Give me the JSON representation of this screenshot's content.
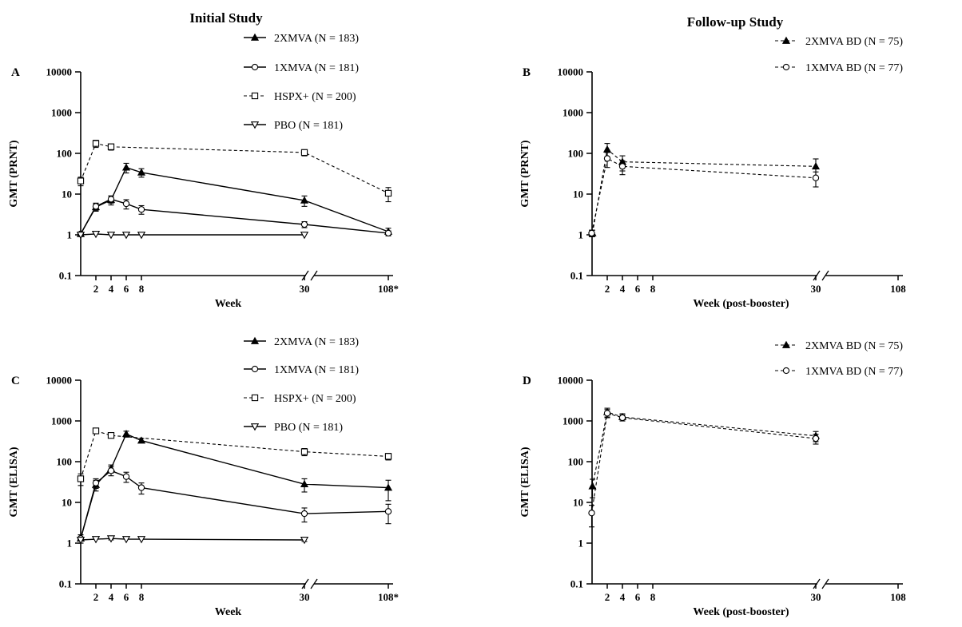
{
  "titles": {
    "left": "Initial Study",
    "right": "Follow-up Study"
  },
  "legend_initial": [
    "2XMVA (N = 183)",
    "1XMVA (N = 181)",
    "HSPX+ (N = 200)",
    "PBO (N = 181)"
  ],
  "legend_followup": [
    "2XMVA BD (N = 75)",
    "1XMVA BD (N = 77)"
  ],
  "chart_data": [
    {
      "id": "A",
      "type": "line",
      "xlabel": "Week",
      "ylabel": "GMT (PRNT)",
      "y_scale": "log",
      "ylim": [
        0.1,
        10000
      ],
      "y_ticks": [
        "0.1",
        "1",
        "10",
        "100",
        "1000",
        "10000"
      ],
      "x_ticks": [
        "2",
        "4",
        "6",
        "8",
        "30",
        "108*"
      ],
      "axis_break": "between 30 and 108*",
      "series": [
        {
          "name": "2XMVA (N = 183)",
          "marker": "triangle-up-filled",
          "dash": "solid",
          "x": [
            0,
            2,
            4,
            6,
            8,
            30,
            108
          ],
          "y": [
            1.05,
            4.8,
            7.2,
            45,
            34,
            7.0,
            1.2
          ],
          "err": [
            0.05,
            1.0,
            1.8,
            12,
            8,
            2.0,
            0.25
          ]
        },
        {
          "name": "1XMVA (N = 181)",
          "marker": "circle-open",
          "dash": "solid",
          "x": [
            0,
            2,
            4,
            6,
            8,
            30,
            108
          ],
          "y": [
            1.05,
            5.0,
            7.5,
            5.8,
            4.2,
            1.8,
            1.1
          ],
          "err": [
            0.05,
            1.0,
            1.5,
            1.5,
            1.0,
            0.3,
            0.15
          ]
        },
        {
          "name": "HSPX+ (N = 200)",
          "marker": "square-open",
          "dash": "dashed",
          "x": [
            0,
            2,
            4,
            30,
            108
          ],
          "y": [
            21,
            175,
            145,
            105,
            10.5
          ],
          "err": [
            5,
            35,
            25,
            18,
            4
          ]
        },
        {
          "name": "PBO (N = 181)",
          "marker": "triangle-down-open",
          "dash": "solid",
          "x": [
            0,
            2,
            4,
            6,
            8,
            30
          ],
          "y": [
            1.0,
            1.05,
            1.0,
            1.0,
            1.0,
            1.0
          ],
          "err": [
            0,
            0,
            0,
            0,
            0,
            0
          ]
        }
      ]
    },
    {
      "id": "B",
      "type": "line",
      "xlabel": "Week (post-booster)",
      "ylabel": "GMT (PRNT)",
      "y_scale": "log",
      "ylim": [
        0.1,
        10000
      ],
      "y_ticks": [
        "0.1",
        "1",
        "10",
        "100",
        "1000",
        "10000"
      ],
      "x_ticks": [
        "2",
        "4",
        "6",
        "8",
        "30",
        "108"
      ],
      "axis_break": "between 30 and 108",
      "series": [
        {
          "name": "2XMVA BD (N = 75)",
          "marker": "triangle-up-filled",
          "dash": "dashed",
          "x": [
            0,
            2,
            4,
            30
          ],
          "y": [
            1.1,
            125,
            62,
            48
          ],
          "err": [
            0.2,
            50,
            25,
            25
          ]
        },
        {
          "name": "1XMVA BD (N = 77)",
          "marker": "circle-open",
          "dash": "dashed",
          "x": [
            0,
            2,
            4,
            30
          ],
          "y": [
            1.1,
            75,
            48,
            25
          ],
          "err": [
            0.2,
            30,
            18,
            10
          ]
        }
      ]
    },
    {
      "id": "C",
      "type": "line",
      "xlabel": "Week",
      "ylabel": "GMT (ELISA)",
      "y_scale": "log",
      "ylim": [
        0.1,
        10000
      ],
      "y_ticks": [
        "0.1",
        "1",
        "10",
        "100",
        "1000",
        "10000"
      ],
      "x_ticks": [
        "2",
        "4",
        "6",
        "8",
        "30",
        "108*"
      ],
      "axis_break": "between 30 and 108*",
      "series": [
        {
          "name": "2XMVA (N = 183)",
          "marker": "triangle-up-filled",
          "dash": "solid",
          "x": [
            0,
            2,
            4,
            6,
            8,
            30,
            108
          ],
          "y": [
            1.3,
            27,
            68,
            480,
            330,
            28,
            23
          ],
          "err": [
            0.3,
            8,
            15,
            80,
            40,
            10,
            12
          ]
        },
        {
          "name": "1XMVA (N = 181)",
          "marker": "circle-open",
          "dash": "solid",
          "x": [
            0,
            2,
            4,
            6,
            8,
            30,
            108
          ],
          "y": [
            1.3,
            30,
            60,
            43,
            23,
            5.3,
            6.0
          ],
          "err": [
            0.3,
            8,
            15,
            12,
            7,
            2,
            3
          ]
        },
        {
          "name": "HSPX+ (N = 200)",
          "marker": "square-open",
          "dash": "dashed",
          "x": [
            0,
            2,
            4,
            30,
            108
          ],
          "y": [
            38,
            570,
            440,
            175,
            135
          ],
          "err": [
            12,
            80,
            60,
            35,
            25
          ]
        },
        {
          "name": "PBO (N = 181)",
          "marker": "triangle-down-open",
          "dash": "solid",
          "x": [
            0,
            2,
            4,
            6,
            8,
            30
          ],
          "y": [
            1.2,
            1.25,
            1.3,
            1.25,
            1.25,
            1.2
          ],
          "err": [
            0,
            0,
            0.1,
            0,
            0,
            0.1
          ]
        }
      ]
    },
    {
      "id": "D",
      "type": "line",
      "xlabel": "Week (post-booster)",
      "ylabel": "GMT (ELISA)",
      "y_scale": "log",
      "ylim": [
        0.1,
        10000
      ],
      "y_ticks": [
        "0.1",
        "1",
        "10",
        "100",
        "1000",
        "10000"
      ],
      "x_ticks": [
        "2",
        "4",
        "6",
        "8",
        "30",
        "108"
      ],
      "axis_break": "between 30 and 108",
      "series": [
        {
          "name": "2XMVA BD (N = 75)",
          "marker": "triangle-up-filled",
          "dash": "dashed",
          "x": [
            0,
            2,
            4,
            30
          ],
          "y": [
            25,
            1650,
            1250,
            430
          ],
          "err": [
            12,
            400,
            250,
            120
          ]
        },
        {
          "name": "1XMVA BD (N = 77)",
          "marker": "circle-open",
          "dash": "dashed",
          "x": [
            0,
            2,
            4,
            30
          ],
          "y": [
            5.5,
            1550,
            1200,
            370
          ],
          "err": [
            3,
            350,
            200,
            100
          ]
        }
      ]
    }
  ]
}
